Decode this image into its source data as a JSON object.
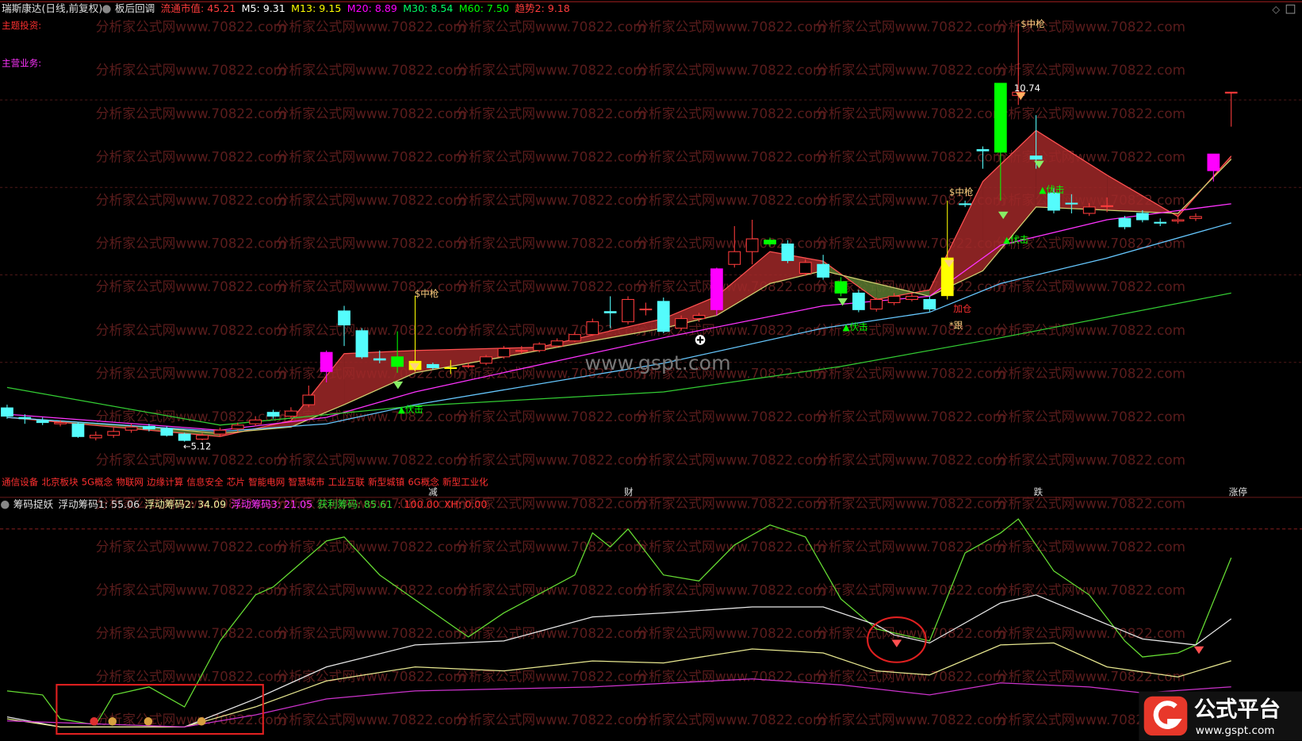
{
  "header": {
    "items": [
      {
        "text": "瑞斯康达(日线,前复权)",
        "color": "#e0e0e0"
      },
      {
        "text": "板后回调",
        "color": "#e0e0e0"
      },
      {
        "text": "流通市值: 45.21",
        "color": "#ff3c3c"
      },
      {
        "text": "M5: 9.31",
        "color": "#ffffff"
      },
      {
        "text": "M13: 9.15",
        "color": "#ffff00"
      },
      {
        "text": "M20: 8.89",
        "color": "#ff00ff"
      },
      {
        "text": "M30: 8.54",
        "color": "#00ff66"
      },
      {
        "text": "M60: 7.50",
        "color": "#00ff00"
      },
      {
        "text": "趋势2: 9.18",
        "color": "#ff3c3c"
      }
    ],
    "side_labels": [
      {
        "text": "主题投资:",
        "color": "#ff3030"
      },
      {
        "text": "主营业务:",
        "color": "#ff33ff"
      }
    ]
  },
  "concepts": [
    "通信设备",
    "北京板块",
    "5G概念",
    "物联网",
    "边缘计算",
    "信息安全",
    "芯片",
    "智能电网",
    "智慧城市",
    "工业互联",
    "新型城镇",
    "6G概念",
    "新型工业化"
  ],
  "markers": [
    "减",
    "财",
    "跌",
    "涨停"
  ],
  "watermark": "分析家公式网www.70822.com",
  "center_watermark": "www.gspt.com",
  "logo": {
    "title": "公式平台",
    "url": "www.gspt.com"
  },
  "chart_data": [
    {
      "type": "candlestick",
      "xlim": [
        -0.4,
        73
      ],
      "ylim": [
        4.6,
        11.85
      ],
      "up_color": "#ff3c3c",
      "down_color": "#54fcfc",
      "open": [
        5.65,
        5.5,
        5.45,
        5.4,
        5.4,
        5.18,
        5.22,
        5.3,
        5.36,
        5.32,
        5.24,
        5.16,
        5.24,
        5.32,
        5.4,
        5.58,
        5.52,
        5.7,
        6.22,
        7.17,
        6.86,
        6.42,
        6.45,
        6.38,
        6.33,
        6.28,
        6.3,
        6.35,
        6.45,
        6.55,
        6.55,
        6.62,
        6.7,
        6.8,
        7.16,
        7.0,
        7.2,
        7.32,
        6.9,
        7.05,
        7.19,
        7.9,
        8.1,
        8.28,
        8.22,
        7.76,
        7.9,
        7.63,
        7.45,
        7.2,
        7.3,
        7.35,
        7.35,
        7.41,
        8.85,
        9.7,
        10.74,
        10.55,
        9.6,
        9.02,
        8.86,
        8.7,
        8.82,
        8.62,
        8.7,
        8.56,
        8.58,
        8.62,
        9.37,
        10.6
      ],
      "close": [
        5.52,
        5.48,
        5.42,
        5.42,
        5.2,
        5.22,
        5.28,
        5.35,
        5.32,
        5.22,
        5.14,
        5.22,
        5.3,
        5.38,
        5.46,
        5.52,
        5.6,
        5.85,
        6.52,
        6.95,
        6.45,
        6.4,
        6.3,
        6.25,
        6.28,
        6.28,
        6.31,
        6.45,
        6.58,
        6.55,
        6.65,
        6.7,
        6.8,
        7.0,
        7.14,
        7.35,
        7.2,
        6.85,
        7.05,
        7.1,
        7.83,
        8.1,
        8.3,
        8.22,
        7.96,
        7.93,
        7.7,
        7.45,
        7.19,
        7.35,
        7.4,
        7.4,
        7.2,
        8.0,
        8.84,
        9.68,
        9.66,
        10.6,
        9.55,
        8.75,
        8.85,
        8.8,
        8.82,
        8.49,
        8.6,
        8.55,
        8.6,
        8.65,
        9.63,
        10.6
      ],
      "high": [
        5.7,
        5.55,
        5.5,
        5.46,
        5.42,
        5.28,
        5.34,
        5.4,
        5.4,
        5.36,
        5.26,
        5.26,
        5.34,
        5.42,
        5.52,
        5.62,
        5.66,
        6.0,
        6.55,
        7.25,
        6.9,
        6.55,
        6.85,
        7.41,
        6.36,
        6.4,
        6.35,
        6.48,
        6.62,
        6.62,
        6.68,
        6.74,
        6.84,
        7.05,
        7.4,
        7.4,
        7.3,
        7.38,
        7.1,
        7.14,
        7.85,
        8.5,
        8.6,
        8.32,
        8.28,
        7.98,
        8.05,
        7.7,
        7.5,
        7.38,
        7.45,
        7.45,
        7.4,
        8.9,
        8.9,
        9.75,
        10.74,
        11.68,
        10.24,
        9.1,
        9.0,
        8.86,
        8.95,
        8.66,
        8.75,
        8.62,
        8.65,
        8.7,
        9.63,
        10.6
      ],
      "low": [
        5.48,
        5.4,
        5.38,
        5.36,
        5.18,
        5.14,
        5.18,
        5.26,
        5.28,
        5.2,
        5.12,
        5.14,
        5.2,
        5.28,
        5.36,
        5.48,
        5.48,
        5.66,
        6.05,
        6.62,
        6.42,
        6.35,
        6.2,
        6.22,
        6.25,
        6.18,
        6.27,
        6.32,
        6.42,
        6.5,
        6.52,
        6.6,
        6.68,
        6.78,
        6.9,
        6.96,
        7.1,
        6.82,
        6.86,
        7.0,
        7.1,
        7.85,
        7.9,
        8.18,
        7.92,
        7.72,
        7.66,
        7.4,
        7.15,
        7.16,
        7.26,
        7.32,
        7.16,
        7.35,
        8.8,
        9.4,
        8.9,
        10.4,
        9.4,
        8.7,
        8.7,
        8.66,
        8.72,
        8.45,
        8.56,
        8.5,
        8.54,
        8.58,
        9.2,
        10.06
      ],
      "candle_colors": [
        null,
        null,
        null,
        null,
        null,
        null,
        null,
        null,
        null,
        null,
        null,
        null,
        null,
        null,
        null,
        null,
        null,
        null,
        "#ff00ff",
        null,
        null,
        null,
        "#00ff00",
        "#ffff00",
        null,
        "#ffff00",
        null,
        null,
        null,
        null,
        null,
        null,
        null,
        null,
        null,
        null,
        null,
        null,
        null,
        null,
        "#ff00ff",
        null,
        null,
        "#00ff00",
        null,
        null,
        null,
        "#00ff00",
        null,
        null,
        null,
        null,
        null,
        "#ffff00",
        null,
        null,
        "#00ff00",
        null,
        null,
        null,
        null,
        null,
        null,
        null,
        null,
        null,
        null,
        null,
        "#ff00ff",
        null
      ],
      "band": {
        "x": [
          0,
          8,
          12,
          16,
          19,
          23,
          30,
          37,
          40,
          43,
          46,
          49,
          52,
          55,
          58,
          62,
          66,
          69
        ],
        "fast": [
          5.5,
          5.3,
          5.2,
          5.45,
          6.5,
          6.55,
          6.6,
          7.05,
          7.4,
          8.1,
          7.95,
          7.35,
          7.5,
          9.2,
          10.0,
          9.3,
          8.65,
          9.6
        ],
        "slow": [
          5.5,
          5.35,
          5.25,
          5.35,
          5.7,
          6.2,
          6.55,
          6.9,
          7.1,
          7.6,
          7.8,
          7.6,
          7.4,
          7.8,
          8.8,
          8.75,
          8.7,
          9.55
        ],
        "fast_color": "#ff5050",
        "slow_color": "#d0d070",
        "fill_up": "#a02828",
        "fill_down": "#5a7a30"
      },
      "series": [
        {
          "color": "#ff33ff",
          "x": [
            0,
            12,
            18,
            23,
            37,
            46,
            52,
            56,
            62,
            69
          ],
          "values": [
            5.55,
            5.3,
            5.5,
            5.9,
            6.75,
            7.25,
            7.4,
            8.2,
            8.6,
            8.85
          ]
        },
        {
          "color": "#66c8ff",
          "x": [
            0,
            12,
            18,
            23,
            37,
            46,
            52,
            56,
            62,
            69
          ],
          "values": [
            5.5,
            5.28,
            5.4,
            5.7,
            6.35,
            6.9,
            7.15,
            7.6,
            8.0,
            8.55
          ]
        },
        {
          "color": "#33cc33",
          "x": [
            0,
            12,
            23,
            37,
            47,
            56,
            69
          ],
          "values": [
            5.97,
            5.38,
            5.68,
            5.9,
            6.3,
            6.75,
            7.45
          ]
        }
      ],
      "annotations": [
        {
          "text": "$中枪",
          "color": "#ffd080"
        },
        {
          "text": "$中枪",
          "color": "#ffd080"
        },
        {
          "text": "$中枪",
          "color": "#ffd080"
        },
        {
          "text": "▲伏击",
          "color": "#00ff00"
        },
        {
          "text": "▲伏击",
          "color": "#00ff00"
        },
        {
          "text": "▲伏击",
          "color": "#00ff00"
        },
        {
          "text": "▲伏击",
          "color": "#00ff00"
        },
        {
          "text": "←5.12",
          "color": "#ffffff"
        },
        {
          "text": "10.74",
          "color": "#ffffff"
        },
        {
          "text": "*跟",
          "color": "#ffd080"
        },
        {
          "text": "加仓",
          "color": "#ff3030"
        }
      ]
    },
    {
      "type": "line",
      "title": "筹码捉妖",
      "xlim": [
        -0.4,
        73
      ],
      "ylim": [
        0,
        110
      ],
      "ref_line": 100,
      "legend": [
        {
          "text": "浮动筹码1: 55.06",
          "color": "#e0e0e0"
        },
        {
          "text": "浮动筹码2: 34.09",
          "color": "#f0f0a0"
        },
        {
          "text": "浮动筹码3: 21.05",
          "color": "#ff33ff"
        },
        {
          "text": "获利筹码: 85.61",
          "color": "#33dd33"
        },
        {
          "text": ": 100.00",
          "color": "#ff3030"
        },
        {
          "text": "XH: 0.00",
          "color": "#ff3030"
        }
      ],
      "series": [
        {
          "color": "#66dd33",
          "x": [
            0,
            2,
            3,
            5,
            6,
            8,
            10,
            12,
            14,
            15,
            18,
            19,
            21,
            26,
            28,
            32,
            33,
            34,
            35,
            37,
            39,
            41,
            43,
            45,
            47,
            49,
            52,
            54,
            56,
            57,
            59,
            61,
            63,
            64,
            66,
            67,
            69
          ],
          "values": [
            19,
            17,
            5,
            2,
            17,
            21,
            11,
            44,
            67,
            71,
            94,
            96,
            77,
            46,
            58,
            77,
            98,
            91,
            100,
            77,
            74,
            92,
            102,
            96,
            65,
            50,
            44,
            88,
            98,
            105,
            79,
            67,
            44,
            36,
            38,
            42,
            85.61
          ]
        },
        {
          "color": "#e8e8e8",
          "x": [
            0,
            3,
            10,
            14,
            18,
            23,
            28,
            33,
            37,
            42,
            46,
            49,
            50,
            52,
            56,
            58,
            61,
            64,
            67,
            69
          ],
          "values": [
            6,
            1,
            1,
            15,
            31,
            42,
            44,
            56,
            58,
            61,
            61,
            52,
            47,
            43,
            63,
            67,
            56,
            45,
            42,
            55.06
          ]
        },
        {
          "color": "#e8e890",
          "x": [
            0,
            3,
            10,
            14,
            18,
            23,
            28,
            33,
            37,
            42,
            46,
            49,
            52,
            56,
            59,
            62,
            66,
            69
          ],
          "values": [
            5,
            1,
            1,
            11,
            24,
            31,
            29,
            34,
            33,
            40,
            38,
            29,
            27,
            42,
            43,
            31,
            26,
            34.09
          ]
        },
        {
          "color": "#cc33cc",
          "x": [
            0,
            10,
            14,
            18,
            23,
            33,
            42,
            47,
            52,
            56,
            61,
            64,
            69
          ],
          "values": [
            4,
            1,
            7,
            15,
            19,
            21,
            25,
            22,
            17,
            23,
            21,
            18,
            21.05
          ]
        }
      ]
    }
  ]
}
